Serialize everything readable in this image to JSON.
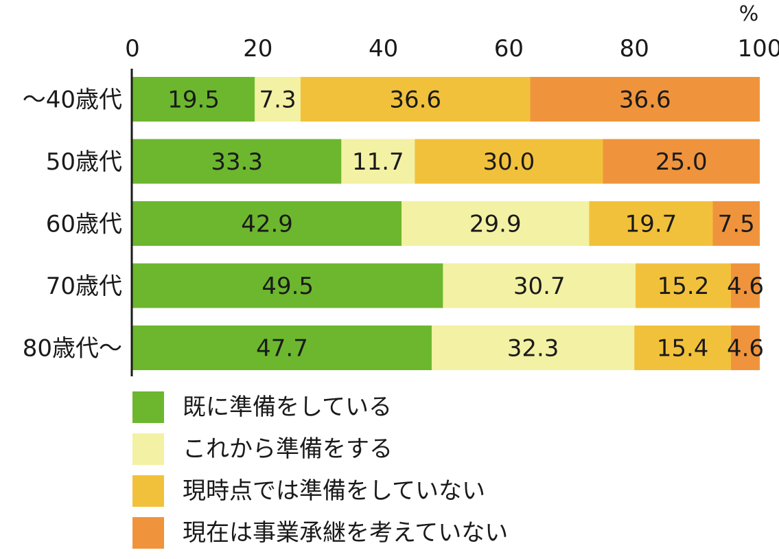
{
  "chart_data": {
    "type": "bar",
    "orientation": "horizontal",
    "stacked": true,
    "unit_label": "%",
    "xlim": [
      0,
      100
    ],
    "x_ticks": [
      "0",
      "20",
      "40",
      "60",
      "80",
      "100"
    ],
    "categories": [
      "～40歳代",
      "50歳代",
      "60歳代",
      "70歳代",
      "80歳代～"
    ],
    "series": [
      {
        "name": "既に準備をしている",
        "color": "#6cb72e",
        "values": [
          19.5,
          33.3,
          42.9,
          49.5,
          47.7
        ],
        "labels": [
          "19.5",
          "33.3",
          "42.9",
          "49.5",
          "47.7"
        ]
      },
      {
        "name": "これから準備をする",
        "color": "#f3f1a3",
        "values": [
          7.3,
          11.7,
          29.9,
          30.7,
          32.3
        ],
        "labels": [
          "7.3",
          "11.7",
          "29.9",
          "30.7",
          "32.3"
        ]
      },
      {
        "name": "現時点では準備をしていない",
        "color": "#f2c13b",
        "values": [
          36.6,
          30.0,
          19.7,
          15.2,
          15.4
        ],
        "labels": [
          "36.6",
          "30.0",
          "19.7",
          "15.2",
          "15.4"
        ]
      },
      {
        "name": "現在は事業承継を考えていない",
        "color": "#ef943c",
        "values": [
          36.6,
          25.0,
          7.5,
          4.6,
          4.6
        ],
        "labels": [
          "36.6",
          "25.0",
          "7.5",
          "4.6",
          "4.6"
        ]
      }
    ],
    "legend_position": "bottom",
    "grid": false
  }
}
